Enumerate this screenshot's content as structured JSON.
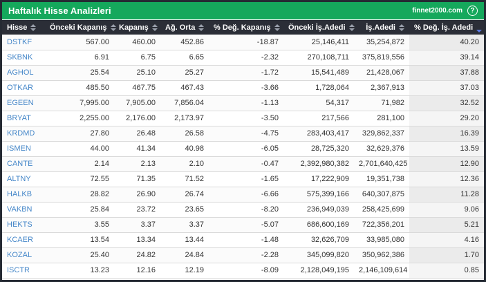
{
  "titlebar": {
    "title": "Haftalık Hisse Analizleri",
    "brand": "finnet2000.com",
    "help_label": "?"
  },
  "colors": {
    "brand-green": "#15a85c",
    "thead-bg": "#2b2e37",
    "frame": "#252a33",
    "ticker-blue": "#4486c8",
    "sort-active": "#5b79e3"
  },
  "table": {
    "columns": [
      {
        "key": "hisse",
        "label": "Hisse",
        "align": "left",
        "sorted": null
      },
      {
        "key": "onceki-kapanis",
        "label": "Önceki Kapanış",
        "align": "right",
        "sorted": null
      },
      {
        "key": "kapanis",
        "label": "Kapanış",
        "align": "right",
        "sorted": null
      },
      {
        "key": "ag-orta",
        "label": "Ağ. Orta",
        "align": "right",
        "sorted": null
      },
      {
        "key": "pct-deg-kapanis",
        "label": "% Değ. Kapanış",
        "align": "right",
        "sorted": null
      },
      {
        "key": "onceki-is-adedi",
        "label": "Önceki İş.Adedi",
        "align": "right",
        "sorted": null
      },
      {
        "key": "is-adedi",
        "label": "İş.Adedi",
        "align": "right",
        "sorted": null
      },
      {
        "key": "pct-deg-is-adedi",
        "label": "% Değ. İş. Adedi",
        "align": "right",
        "sorted": "desc"
      }
    ],
    "rows": [
      [
        "DSTKF",
        "567.00",
        "460.00",
        "452.86",
        "-18.87",
        "25,146,411",
        "35,254,872",
        "40.20"
      ],
      [
        "SKBNK",
        "6.91",
        "6.75",
        "6.65",
        "-2.32",
        "270,108,711",
        "375,819,556",
        "39.14"
      ],
      [
        "AGHOL",
        "25.54",
        "25.10",
        "25.27",
        "-1.72",
        "15,541,489",
        "21,428,067",
        "37.88"
      ],
      [
        "OTKAR",
        "485.50",
        "467.75",
        "467.43",
        "-3.66",
        "1,728,064",
        "2,367,913",
        "37.03"
      ],
      [
        "EGEEN",
        "7,995.00",
        "7,905.00",
        "7,856.04",
        "-1.13",
        "54,317",
        "71,982",
        "32.52"
      ],
      [
        "BRYAT",
        "2,255.00",
        "2,176.00",
        "2,173.97",
        "-3.50",
        "217,566",
        "281,100",
        "29.20"
      ],
      [
        "KRDMD",
        "27.80",
        "26.48",
        "26.58",
        "-4.75",
        "283,403,417",
        "329,862,337",
        "16.39"
      ],
      [
        "ISMEN",
        "44.00",
        "41.34",
        "40.98",
        "-6.05",
        "28,725,320",
        "32,629,376",
        "13.59"
      ],
      [
        "CANTE",
        "2.14",
        "2.13",
        "2.10",
        "-0.47",
        "2,392,980,382",
        "2,701,640,425",
        "12.90"
      ],
      [
        "ALTNY",
        "72.55",
        "71.35",
        "71.52",
        "-1.65",
        "17,222,909",
        "19,351,738",
        "12.36"
      ],
      [
        "HALKB",
        "28.82",
        "26.90",
        "26.74",
        "-6.66",
        "575,399,166",
        "640,307,875",
        "11.28"
      ],
      [
        "VAKBN",
        "25.84",
        "23.72",
        "23.65",
        "-8.20",
        "236,949,039",
        "258,425,699",
        "9.06"
      ],
      [
        "HEKTS",
        "3.55",
        "3.37",
        "3.37",
        "-5.07",
        "686,600,169",
        "722,356,201",
        "5.21"
      ],
      [
        "KCAER",
        "13.54",
        "13.34",
        "13.44",
        "-1.48",
        "32,626,709",
        "33,985,080",
        "4.16"
      ],
      [
        "KOZAL",
        "25.40",
        "24.82",
        "24.84",
        "-2.28",
        "345,099,820",
        "350,962,386",
        "1.70"
      ],
      [
        "ISCTR",
        "13.23",
        "12.16",
        "12.19",
        "-8.09",
        "2,128,049,195",
        "2,146,109,614",
        "0.85"
      ]
    ]
  }
}
